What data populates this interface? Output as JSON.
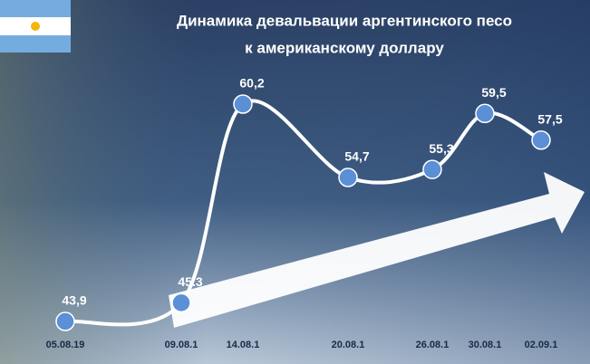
{
  "chart_data": {
    "type": "line",
    "title": [
      "Динамика девальвации аргентинского песо",
      "к американскому доллару"
    ],
    "categories": [
      "05.08.19",
      "09.08.1",
      "14.08.1",
      "20.08.1",
      "26.08.1",
      "30.08.1",
      "02.09.1"
    ],
    "values": [
      43.9,
      45.3,
      60.2,
      54.7,
      55.3,
      59.5,
      57.5
    ],
    "value_labels": [
      "43,9",
      "45.3",
      "60,2",
      "54,7",
      "55,3",
      "59,5",
      "57,5"
    ],
    "color": "#ffffff",
    "marker_color": "#5b8fd6"
  }
}
